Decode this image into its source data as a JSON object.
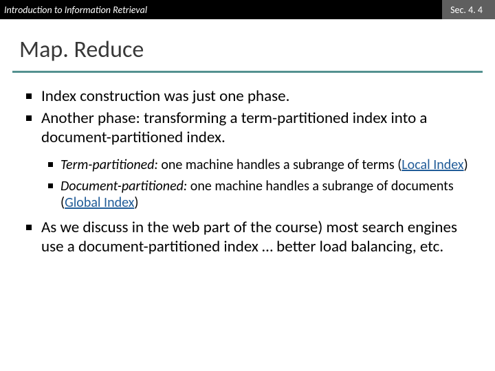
{
  "header": {
    "left": "Introduction to Information Retrieval",
    "right": "Sec. 4. 4"
  },
  "title": "Map. Reduce",
  "colors": {
    "header_bg": "#000000",
    "header_right_bg": "#5f5f5f",
    "header_text": "#ffffff",
    "title_color": "#383838",
    "underline": "#549190",
    "body_text": "#000000",
    "link": "#215c98",
    "background": "#ffffff"
  },
  "typography": {
    "title_fontsize": 34,
    "outer_fontsize": 23,
    "inner_fontsize": 20,
    "header_fontsize": 14
  },
  "bullets": {
    "b1": "Index construction was just one phase.",
    "b2": "Another phase: transforming a term-partitioned index into a document-partitioned index.",
    "b2_sub1_em": "Term-partitioned:",
    "b2_sub1_rest": " one machine handles a subrange of terms (",
    "b2_sub1_link": "Local Index",
    "b2_sub1_close": ")",
    "b2_sub2_em": "Document-partitioned:",
    "b2_sub2_rest": " one machine handles a subrange of documents (",
    "b2_sub2_link": "Global Index",
    "b2_sub2_close": ")",
    "b3": "As we discuss in the web part of the course) most search engines use a document-partitioned index … better load balancing, etc."
  }
}
